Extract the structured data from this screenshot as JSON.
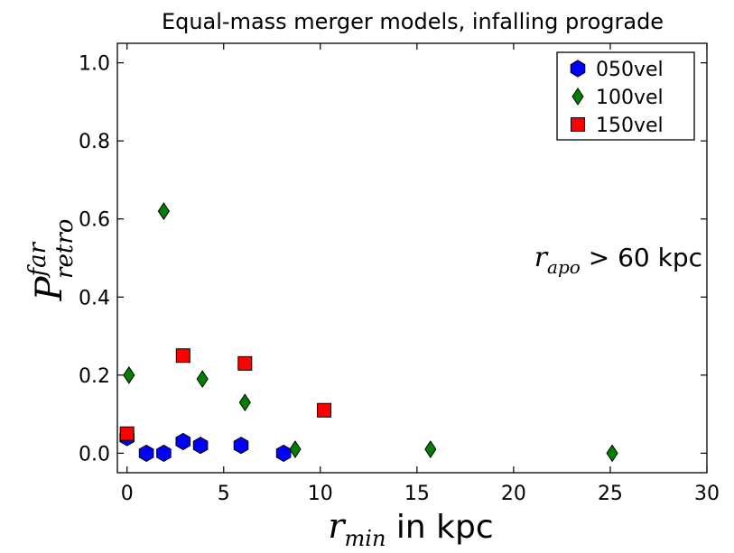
{
  "chart_data": {
    "type": "scatter",
    "title": "Equal-mass merger models, infalling prograde",
    "xlabel": {
      "math_base": "r",
      "math_sub": "min",
      "text": " in kpc"
    },
    "ylabel": {
      "math_base": "P",
      "math_sup": "far",
      "math_sub": "retro"
    },
    "annotation": {
      "math_base": "r",
      "math_sub": "apo",
      "text": " > 60 kpc"
    },
    "xlim": [
      -0.5,
      30
    ],
    "ylim": [
      -0.05,
      1.05
    ],
    "xticks": [
      0,
      5,
      10,
      15,
      20,
      25,
      30
    ],
    "yticks": [
      0.0,
      0.2,
      0.4,
      0.6,
      0.8,
      1.0
    ],
    "xtick_labels": [
      "0",
      "5",
      "10",
      "15",
      "20",
      "25",
      "30"
    ],
    "ytick_labels": [
      "0.0",
      "0.2",
      "0.4",
      "0.6",
      "0.8",
      "1.0"
    ],
    "grid": false,
    "legend_position": "top-right",
    "series": [
      {
        "name": "050vel",
        "marker": "hexagon",
        "color": "#0000ff",
        "points": [
          {
            "x": 0.0,
            "y": 0.04
          },
          {
            "x": 1.0,
            "y": 0.0
          },
          {
            "x": 1.9,
            "y": 0.0
          },
          {
            "x": 2.9,
            "y": 0.03
          },
          {
            "x": 3.8,
            "y": 0.02
          },
          {
            "x": 5.9,
            "y": 0.02
          },
          {
            "x": 8.1,
            "y": 0.0
          }
        ]
      },
      {
        "name": "100vel",
        "marker": "diamond",
        "color": "#008000",
        "points": [
          {
            "x": 0.1,
            "y": 0.2
          },
          {
            "x": 1.9,
            "y": 0.62
          },
          {
            "x": 3.9,
            "y": 0.19
          },
          {
            "x": 6.1,
            "y": 0.13
          },
          {
            "x": 8.7,
            "y": 0.01
          },
          {
            "x": 15.7,
            "y": 0.01
          },
          {
            "x": 25.1,
            "y": 0.0
          }
        ]
      },
      {
        "name": "150vel",
        "marker": "square",
        "color": "#ff0000",
        "points": [
          {
            "x": 0.0,
            "y": 0.05
          },
          {
            "x": 2.9,
            "y": 0.25
          },
          {
            "x": 6.1,
            "y": 0.23
          },
          {
            "x": 10.2,
            "y": 0.11
          }
        ]
      }
    ]
  }
}
